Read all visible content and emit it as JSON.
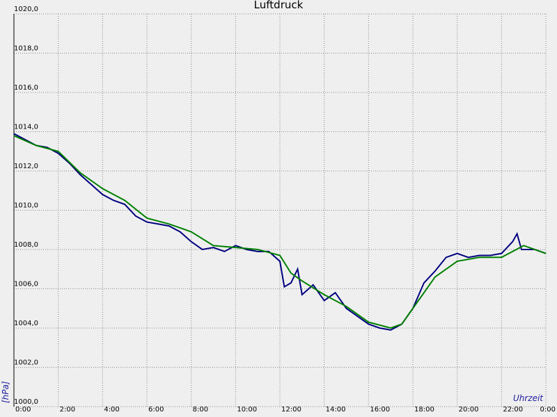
{
  "chart_data": {
    "type": "line",
    "title": "Luftdruck",
    "ylabel": "[hPa]",
    "xlabel": "Uhrzeit",
    "xlim": [
      0,
      24
    ],
    "ylim": [
      1000,
      1020
    ],
    "grid": true,
    "xticks": [
      {
        "value": 0,
        "label": "0:00"
      },
      {
        "value": 2,
        "label": "2:00"
      },
      {
        "value": 4,
        "label": "4:00"
      },
      {
        "value": 6,
        "label": "6:00"
      },
      {
        "value": 8,
        "label": "8:00"
      },
      {
        "value": 10,
        "label": "10:00"
      },
      {
        "value": 12,
        "label": "12:00"
      },
      {
        "value": 14,
        "label": "14:00"
      },
      {
        "value": 16,
        "label": "16:00"
      },
      {
        "value": 18,
        "label": "18:00"
      },
      {
        "value": 20,
        "label": "20:00"
      },
      {
        "value": 22,
        "label": "22:00"
      },
      {
        "value": 24,
        "label": "0:00"
      }
    ],
    "yticks": [
      {
        "value": 1000,
        "label": "1000,0"
      },
      {
        "value": 1002,
        "label": "1002,0"
      },
      {
        "value": 1004,
        "label": "1004,0"
      },
      {
        "value": 1006,
        "label": "1006,0"
      },
      {
        "value": 1008,
        "label": "1008,0"
      },
      {
        "value": 1010,
        "label": "1010,0"
      },
      {
        "value": 1012,
        "label": "1012,0"
      },
      {
        "value": 1014,
        "label": "1014,0"
      },
      {
        "value": 1016,
        "label": "1016,0"
      },
      {
        "value": 1018,
        "label": "1018,0"
      },
      {
        "value": 1020,
        "label": "1020,0"
      }
    ],
    "series": [
      {
        "color": "#000080",
        "x": [
          0,
          0.5,
          1,
          1.5,
          2,
          2.5,
          3,
          3.5,
          4,
          4.5,
          5,
          5.5,
          6,
          6.5,
          7,
          7.5,
          8,
          8.5,
          9,
          9.5,
          10,
          10.5,
          11,
          11.5,
          12,
          12.2,
          12.5,
          12.8,
          13,
          13.5,
          14,
          14.5,
          15,
          15.5,
          16,
          16.5,
          17,
          17.5,
          18,
          18.5,
          19,
          19.5,
          20,
          20.5,
          21,
          21.5,
          22,
          22.5,
          22.7,
          22.9,
          23.5,
          24
        ],
        "values": [
          1013.9,
          1013.6,
          1013.3,
          1013.2,
          1012.9,
          1012.4,
          1011.8,
          1011.3,
          1010.8,
          1010.5,
          1010.3,
          1009.7,
          1009.4,
          1009.3,
          1009.2,
          1008.9,
          1008.4,
          1008.0,
          1008.1,
          1007.9,
          1008.2,
          1008.0,
          1007.9,
          1007.9,
          1007.4,
          1006.1,
          1006.3,
          1007.0,
          1005.7,
          1006.2,
          1005.4,
          1005.8,
          1005.0,
          1004.6,
          1004.2,
          1004.0,
          1003.9,
          1004.2,
          1005.0,
          1006.3,
          1006.9,
          1007.6,
          1007.8,
          1007.6,
          1007.7,
          1007.7,
          1007.8,
          1008.4,
          1008.8,
          1008.0,
          1008.0,
          1007.8
        ]
      },
      {
        "color": "#008000",
        "x": [
          0,
          1,
          2,
          3,
          4,
          5,
          6,
          7,
          8,
          9,
          10,
          11,
          12,
          12.5,
          13,
          14,
          15,
          16,
          17,
          17.5,
          18,
          19,
          20,
          21,
          22,
          23,
          24
        ],
        "values": [
          1013.8,
          1013.3,
          1013.0,
          1011.9,
          1011.1,
          1010.5,
          1009.6,
          1009.3,
          1008.9,
          1008.2,
          1008.1,
          1008.0,
          1007.7,
          1006.8,
          1006.4,
          1005.7,
          1005.1,
          1004.3,
          1004.0,
          1004.2,
          1005.0,
          1006.6,
          1007.4,
          1007.6,
          1007.6,
          1008.2,
          1007.8
        ]
      }
    ]
  }
}
